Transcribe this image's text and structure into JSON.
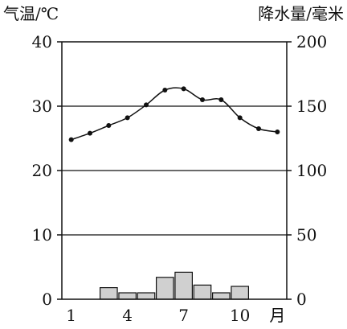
{
  "chart_data": {
    "type": "climate",
    "left_axis_label": "气温/℃",
    "right_axis_label": "降水量/毫米",
    "x_unit_label": "月",
    "months": [
      1,
      2,
      3,
      4,
      5,
      6,
      7,
      8,
      9,
      10,
      11,
      12
    ],
    "x_tick_labels": [
      "1",
      "4",
      "7",
      "10"
    ],
    "temperature": {
      "type": "line",
      "values": [
        24.8,
        25.8,
        27.0,
        28.2,
        30.2,
        32.5,
        32.7,
        31.0,
        31.0,
        28.2,
        26.5,
        26.0
      ],
      "ylim": [
        0,
        40
      ],
      "ticks": [
        "0",
        "10",
        "20",
        "30",
        "40"
      ]
    },
    "precipitation": {
      "type": "bar",
      "values": [
        0,
        0,
        9,
        5,
        5,
        17,
        21,
        11,
        5,
        10,
        0,
        0
      ],
      "ylim": [
        0,
        200
      ],
      "ticks": [
        "0",
        "50",
        "100",
        "150",
        "200"
      ]
    },
    "grid": "horizontal",
    "colors": {
      "bar_fill": "#d0d0d0",
      "line": "#111111",
      "axis": "#111111"
    }
  }
}
